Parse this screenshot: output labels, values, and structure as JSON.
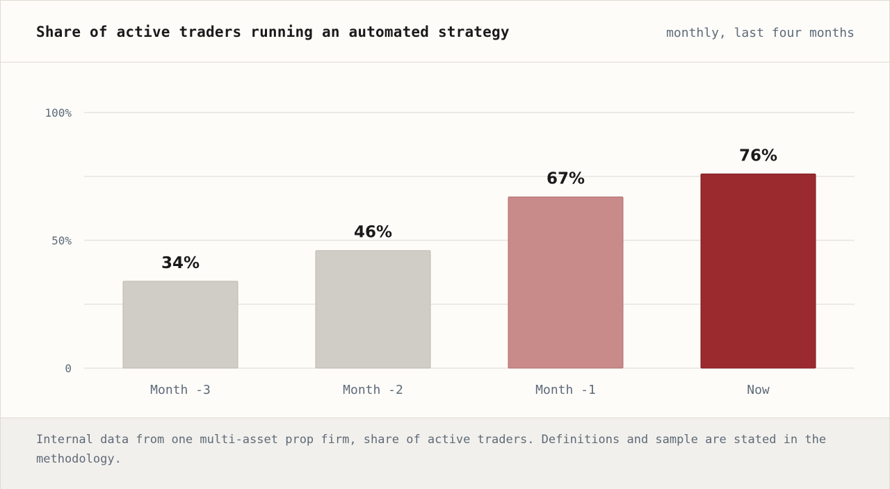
{
  "header": {
    "title": "Share of active traders running an automated strategy",
    "subtitle": "monthly, last four months"
  },
  "footer": {
    "note": "Internal data from one multi-asset prop firm, share of active traders. Definitions and sample are stated in the methodology."
  },
  "chart_data": {
    "type": "bar",
    "categories": [
      "Month -3",
      "Month -2",
      "Month -1",
      "Now"
    ],
    "values": [
      34,
      46,
      67,
      76
    ],
    "data_labels": [
      "34%",
      "46%",
      "67%",
      "76%"
    ],
    "bar_colors": [
      "#d0cdc6",
      "#d0cdc6",
      "#c98a8a",
      "#9b2a2e"
    ],
    "bar_border_colors": [
      "#bdb9b0",
      "#bdb9b0",
      "#b46f70",
      "#7e1a1e"
    ],
    "ylim": [
      0,
      100
    ],
    "gridlines": [
      0,
      25,
      50,
      75,
      100
    ],
    "ytick_values": [
      0,
      50,
      100
    ],
    "ytick_labels": [
      "0",
      "50%",
      "100%"
    ],
    "grid": true,
    "legend": "none"
  }
}
